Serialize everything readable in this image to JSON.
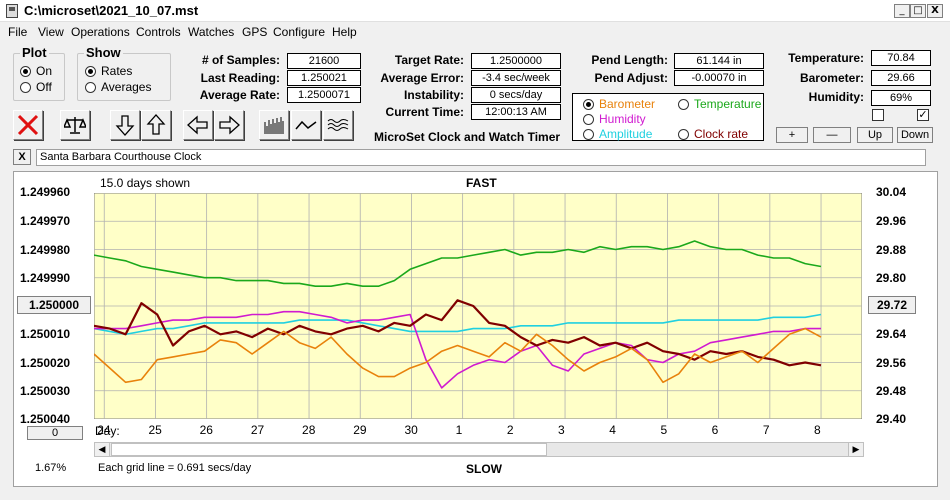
{
  "window": {
    "title": "C:\\microset\\2021_10_07.mst",
    "minimize": "_",
    "maximize": "□",
    "close": "X"
  },
  "menu": [
    "File",
    "View",
    "Operations",
    "Controls",
    "Watches",
    "GPS",
    "Configure",
    "Help"
  ],
  "plot_group": {
    "title": "Plot",
    "on_label": "On",
    "off_label": "Off",
    "selected": "On"
  },
  "show_group": {
    "title": "Show",
    "rates_label": "Rates",
    "averages_label": "Averages",
    "selected": "Rates"
  },
  "stats": {
    "samples_label": "# of Samples:",
    "samples": "21600",
    "last_reading_label": "Last Reading:",
    "last_reading": "1.250021",
    "average_rate_label": "Average Rate:",
    "average_rate": "1.2500071",
    "target_rate_label": "Target Rate:",
    "target_rate": "1.2500000",
    "average_error_label": "Average Error:",
    "average_error": "-3.4 sec/week",
    "instability_label": "Instability:",
    "instability": "0 secs/day",
    "current_time_label": "Current Time:",
    "current_time": "12:00:13 AM",
    "pend_length_label": "Pend Length:",
    "pend_length": "61.144 in",
    "pend_adjust_label": "Pend Adjust:",
    "pend_adjust": "-0.00070 in",
    "temperature_label": "Temperature:",
    "temperature": "70.84",
    "barometer_label": "Barometer:",
    "barometer": "29.66",
    "humidity_label": "Humidity:",
    "humidity": "69%"
  },
  "app_name": "MicroSet Clock and Watch Timer",
  "overlay": {
    "options": [
      {
        "label": "Barometer",
        "color": "#e8820c",
        "selected": true
      },
      {
        "label": "Temperature",
        "color": "#1ba81b",
        "selected": false
      },
      {
        "label": "Humidity",
        "color": "#d01ad0",
        "selected": false
      },
      {
        "label": "Clock rate",
        "color": "#800000",
        "selected": false
      },
      {
        "label": "Amplitude",
        "color": "#20d0e0",
        "selected": false
      }
    ]
  },
  "scale_buttons": {
    "plus": "+",
    "minus": "—",
    "up": "Up",
    "down": "Down"
  },
  "checkbox_right": "✓",
  "clock_name_close": "X",
  "clock_name": "Santa Barbara Courthouse Clock",
  "toolbar_icons": [
    "close-red-x-icon",
    "balance-scale-icon",
    "arrow-down-icon",
    "arrow-up-icon",
    "arrow-left-icon",
    "arrow-right-icon",
    "bar-graph-icon",
    "line-graph-icon",
    "wave-graph-icon"
  ],
  "chart_info": {
    "days_shown": "15.0 days shown",
    "fast_label": "FAST",
    "slow_label": "SLOW",
    "grid_note": "Each grid line = 0.691 secs/day",
    "percent": "1.67%",
    "day_label": "Day:",
    "left_center_button": "1.250000",
    "right_center_button": "29.72",
    "bottom_left_button": "0"
  },
  "colors": {
    "plot_bg": "#ffffc8",
    "barometer": "#e8820c",
    "temperature": "#1ba81b",
    "humidity": "#d01ad0",
    "clock_rate": "#800000",
    "amplitude": "#20d0e0"
  },
  "chart_data": {
    "type": "line",
    "x_label": "Day:",
    "x_ticks": [
      "24",
      "25",
      "26",
      "27",
      "28",
      "29",
      "30",
      "1",
      "2",
      "3",
      "4",
      "5",
      "6",
      "7",
      "8"
    ],
    "x_range_days": [
      23.8,
      38.8
    ],
    "y_left_ticks": [
      "1.249960",
      "1.249970",
      "1.249980",
      "1.249990",
      "1.250000",
      "1.250010",
      "1.250020",
      "1.250030",
      "1.250040"
    ],
    "y_left_range": [
      1.24996,
      1.25004
    ],
    "y_right_ticks": [
      "30.04",
      "29.96",
      "29.88",
      "29.80",
      "29.72",
      "29.64",
      "29.56",
      "29.48",
      "29.40"
    ],
    "y_right_range": [
      29.4,
      30.04
    ],
    "series": [
      {
        "name": "Temperature",
        "color": "#1ba81b",
        "values": [
          1.249982,
          1.249983,
          1.249984,
          1.249986,
          1.249987,
          1.249988,
          1.249989,
          1.24999,
          1.24999,
          1.249991,
          1.249991,
          1.249991,
          1.249992,
          1.249992,
          1.249993,
          1.249993,
          1.249992,
          1.249993,
          1.249993,
          1.249991,
          1.249987,
          1.249985,
          1.249983,
          1.249983,
          1.249982,
          1.249981,
          1.24998,
          1.249982,
          1.249981,
          1.249981,
          1.24998,
          1.249981,
          1.249979,
          1.24998,
          1.249979,
          1.249979,
          1.24998,
          1.249979,
          1.249977,
          1.249979,
          1.24998,
          1.24998,
          1.249982,
          1.249983,
          1.249983,
          1.249985,
          1.249986
        ]
      },
      {
        "name": "Amplitude",
        "color": "#20d0e0",
        "values": [
          1.250008,
          1.250009,
          1.25001,
          1.250009,
          1.250008,
          1.250008,
          1.250007,
          1.250006,
          1.250006,
          1.250006,
          1.250006,
          1.250006,
          1.250006,
          1.250005,
          1.250005,
          1.250005,
          1.250005,
          1.250006,
          1.250007,
          1.250008,
          1.250009,
          1.250009,
          1.250009,
          1.250009,
          1.250008,
          1.250008,
          1.250008,
          1.250007,
          1.250007,
          1.250007,
          1.250006,
          1.250006,
          1.250006,
          1.250006,
          1.250006,
          1.250006,
          1.250006,
          1.250005,
          1.250005,
          1.250005,
          1.250005,
          1.250005,
          1.250005,
          1.250004,
          1.250004,
          1.250004,
          1.250003
        ]
      },
      {
        "name": "Humidity",
        "color": "#d01ad0",
        "values": [
          1.250008,
          1.250008,
          1.250008,
          1.250007,
          1.250006,
          1.250005,
          1.250005,
          1.250004,
          1.250004,
          1.250004,
          1.250003,
          1.250003,
          1.250002,
          1.250002,
          1.250003,
          1.250004,
          1.250006,
          1.250005,
          1.250005,
          1.250004,
          1.250003,
          1.250019,
          1.250029,
          1.250024,
          1.250021,
          1.250019,
          1.25002,
          1.250016,
          1.250014,
          1.250021,
          1.250023,
          1.250017,
          1.250015,
          1.250013,
          1.250014,
          1.250019,
          1.25002,
          1.250017,
          1.250016,
          1.250013,
          1.250012,
          1.250011,
          1.25001,
          1.250009,
          1.250009,
          1.250008,
          1.250008
        ]
      },
      {
        "name": "Clock rate",
        "color": "#800000",
        "values": [
          1.250007,
          1.250008,
          1.25001,
          1.249999,
          1.250003,
          1.250014,
          1.250009,
          1.250007,
          1.25001,
          1.250009,
          1.250011,
          1.250008,
          1.25001,
          1.250007,
          1.250009,
          1.25001,
          1.250008,
          1.250007,
          1.250009,
          1.250006,
          1.250007,
          1.250003,
          1.250005,
          1.249998,
          1.25,
          1.250006,
          1.250007,
          1.250011,
          1.250014,
          1.250012,
          1.250013,
          1.250011,
          1.250014,
          1.250013,
          1.250015,
          1.250013,
          1.250016,
          1.250017,
          1.250019,
          1.250016,
          1.250017,
          1.250016,
          1.250018,
          1.250019,
          1.250021,
          1.25002,
          1.250021
        ]
      },
      {
        "name": "Barometer",
        "color": "#e8820c",
        "values": [
          1.250017,
          1.250022,
          1.250027,
          1.250026,
          1.250019,
          1.250018,
          1.250017,
          1.250016,
          1.250012,
          1.250013,
          1.250017,
          1.250013,
          1.250009,
          1.250013,
          1.250015,
          1.250011,
          1.250017,
          1.250022,
          1.250025,
          1.250025,
          1.250022,
          1.25002,
          1.250016,
          1.250014,
          1.250016,
          1.250018,
          1.250013,
          1.250016,
          1.25001,
          1.250014,
          1.250019,
          1.250023,
          1.25002,
          1.250018,
          1.250015,
          1.250019,
          1.250027,
          1.250024,
          1.250017,
          1.25002,
          1.250018,
          1.250016,
          1.25002,
          1.250015,
          1.25001,
          1.250008,
          1.250011
        ]
      }
    ]
  }
}
